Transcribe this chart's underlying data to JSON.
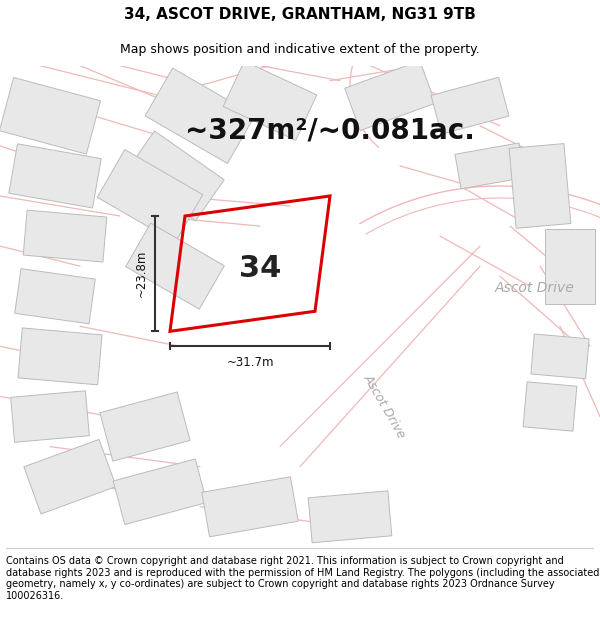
{
  "title": "34, ASCOT DRIVE, GRANTHAM, NG31 9TB",
  "subtitle": "Map shows position and indicative extent of the property.",
  "area_text": "~327m²/~0.081ac.",
  "number_label": "34",
  "dim_horizontal": "~31.7m",
  "dim_vertical": "~23.8m",
  "street_label": "Ascot Drive",
  "footer": "Contains OS data © Crown copyright and database right 2021. This information is subject to Crown copyright and database rights 2023 and is reproduced with the permission of HM Land Registry. The polygons (including the associated geometry, namely x, y co-ordinates) are subject to Crown copyright and database rights 2023 Ordnance Survey 100026316.",
  "bg_color": "#ffffff",
  "map_bg": "#ffffff",
  "building_fc": "#e8e8e8",
  "building_ec": "#bbbbbb",
  "road_color": "#f0b8b8",
  "property_color": "#dd0000",
  "title_fontsize": 11,
  "subtitle_fontsize": 9,
  "area_fontsize": 20,
  "footer_fontsize": 7.0
}
